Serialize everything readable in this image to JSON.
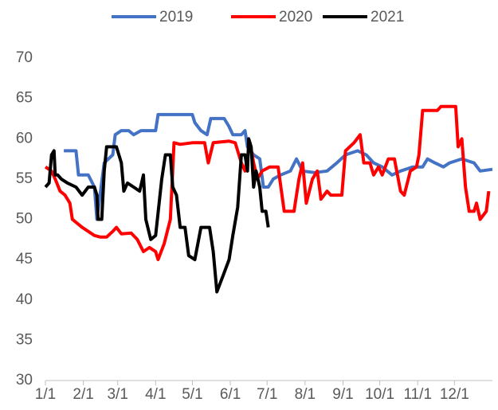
{
  "chart_data": {
    "type": "line",
    "xlim": [
      0,
      365
    ],
    "xticks": [
      {
        "value": 0,
        "label": "1/1"
      },
      {
        "value": 31,
        "label": "2/1"
      },
      {
        "value": 59,
        "label": "3/1"
      },
      {
        "value": 90,
        "label": "4/1"
      },
      {
        "value": 120,
        "label": "5/1"
      },
      {
        "value": 151,
        "label": "6/1"
      },
      {
        "value": 181,
        "label": "7/1"
      },
      {
        "value": 212,
        "label": "8/1"
      },
      {
        "value": 243,
        "label": "9/1"
      },
      {
        "value": 273,
        "label": "10/1"
      },
      {
        "value": 304,
        "label": "11/1"
      },
      {
        "value": 334,
        "label": "12/1"
      }
    ],
    "ylim": [
      30,
      70
    ],
    "yticks": [
      30,
      35,
      40,
      45,
      50,
      55,
      60,
      65,
      70
    ],
    "grid": false,
    "legend": "top",
    "series": [
      {
        "name": "2019",
        "color": "#4472c4",
        "x": [
          15,
          25,
          27,
          35,
          40,
          42,
          48,
          55,
          57,
          62,
          68,
          72,
          78,
          90,
          92,
          100,
          120,
          122,
          127,
          132,
          135,
          146,
          150,
          153,
          160,
          163,
          165,
          170,
          175,
          178,
          182,
          186,
          192,
          200,
          205,
          210,
          220,
          230,
          238,
          245,
          255,
          262,
          268,
          275,
          283,
          290,
          300,
          308,
          312,
          318,
          325,
          330,
          340,
          350,
          355,
          365
        ],
        "values": [
          58.5,
          58.5,
          55.5,
          55.5,
          54,
          50,
          57,
          58,
          60.5,
          61,
          61,
          60.5,
          61,
          61,
          63,
          63,
          63,
          62,
          61,
          60.5,
          62.5,
          62.5,
          61.5,
          60.5,
          60.5,
          61,
          59,
          58,
          57.5,
          54,
          54,
          55,
          55.5,
          56,
          57.5,
          56,
          55.8,
          56,
          57,
          58,
          58.5,
          58,
          57,
          56.5,
          55.5,
          56,
          56.5,
          56.5,
          57.5,
          57,
          56.5,
          57,
          57.5,
          57,
          56,
          56.2
        ]
      },
      {
        "name": "2020",
        "color": "#ff0000",
        "x": [
          0,
          5,
          8,
          12,
          16,
          20,
          22,
          30,
          35,
          40,
          45,
          50,
          55,
          58,
          62,
          70,
          75,
          80,
          85,
          90,
          92,
          97,
          102,
          105,
          110,
          120,
          130,
          133,
          137,
          150,
          155,
          160,
          163,
          167,
          170,
          173,
          177,
          183,
          190,
          195,
          203,
          207,
          210,
          213,
          218,
          222,
          225,
          230,
          233,
          242,
          245,
          252,
          257,
          260,
          265,
          268,
          272,
          275,
          280,
          285,
          290,
          293,
          298,
          303,
          305,
          308,
          320,
          323,
          335,
          337,
          340,
          343,
          346,
          350,
          352,
          355,
          360,
          362
        ],
        "values": [
          56.5,
          56,
          55,
          53.5,
          53,
          52,
          50,
          49,
          48.5,
          48,
          47.8,
          47.8,
          48.5,
          49,
          48.2,
          48.3,
          47.5,
          46,
          46.5,
          46,
          45,
          47,
          50,
          59.5,
          59.3,
          59.5,
          59.5,
          57,
          59.5,
          59.7,
          59.5,
          57,
          56,
          59.5,
          57,
          55,
          56,
          56.5,
          56.5,
          51,
          51,
          55,
          57,
          52,
          55,
          56,
          52.5,
          53.5,
          53,
          53,
          58.5,
          59.5,
          60.5,
          57,
          57,
          55.5,
          56.5,
          55.5,
          57.5,
          57.5,
          53.5,
          53,
          56,
          56.5,
          58,
          63.5,
          63.5,
          64,
          64,
          59,
          60,
          54,
          51,
          51,
          52,
          50,
          51,
          53.5
        ]
      },
      {
        "name": "2021",
        "color": "#000000",
        "x": [
          0,
          3,
          5,
          7,
          8,
          10,
          13,
          18,
          25,
          30,
          35,
          40,
          42,
          43,
          46,
          48,
          50,
          58,
          62,
          64,
          67,
          72,
          77,
          80,
          82,
          86,
          90,
          95,
          98,
          102,
          104,
          107,
          110,
          114,
          117,
          122,
          127,
          134,
          137,
          140,
          145,
          150,
          153,
          157,
          160,
          163,
          165,
          166,
          168,
          170,
          172,
          175,
          177,
          180,
          182
        ],
        "values": [
          54,
          54.5,
          58,
          58.5,
          55.5,
          55.5,
          55,
          54.5,
          54,
          53,
          54,
          54,
          53,
          50,
          50,
          56,
          59,
          59,
          57,
          53.5,
          54.5,
          54,
          53.5,
          55.5,
          50,
          47.5,
          48,
          55,
          58,
          58,
          54,
          53,
          49,
          49,
          45.5,
          45,
          49,
          49,
          46,
          41,
          43,
          45,
          48,
          51.5,
          58,
          58,
          56,
          60,
          59,
          54,
          56,
          54,
          51,
          51,
          49
        ]
      }
    ]
  }
}
